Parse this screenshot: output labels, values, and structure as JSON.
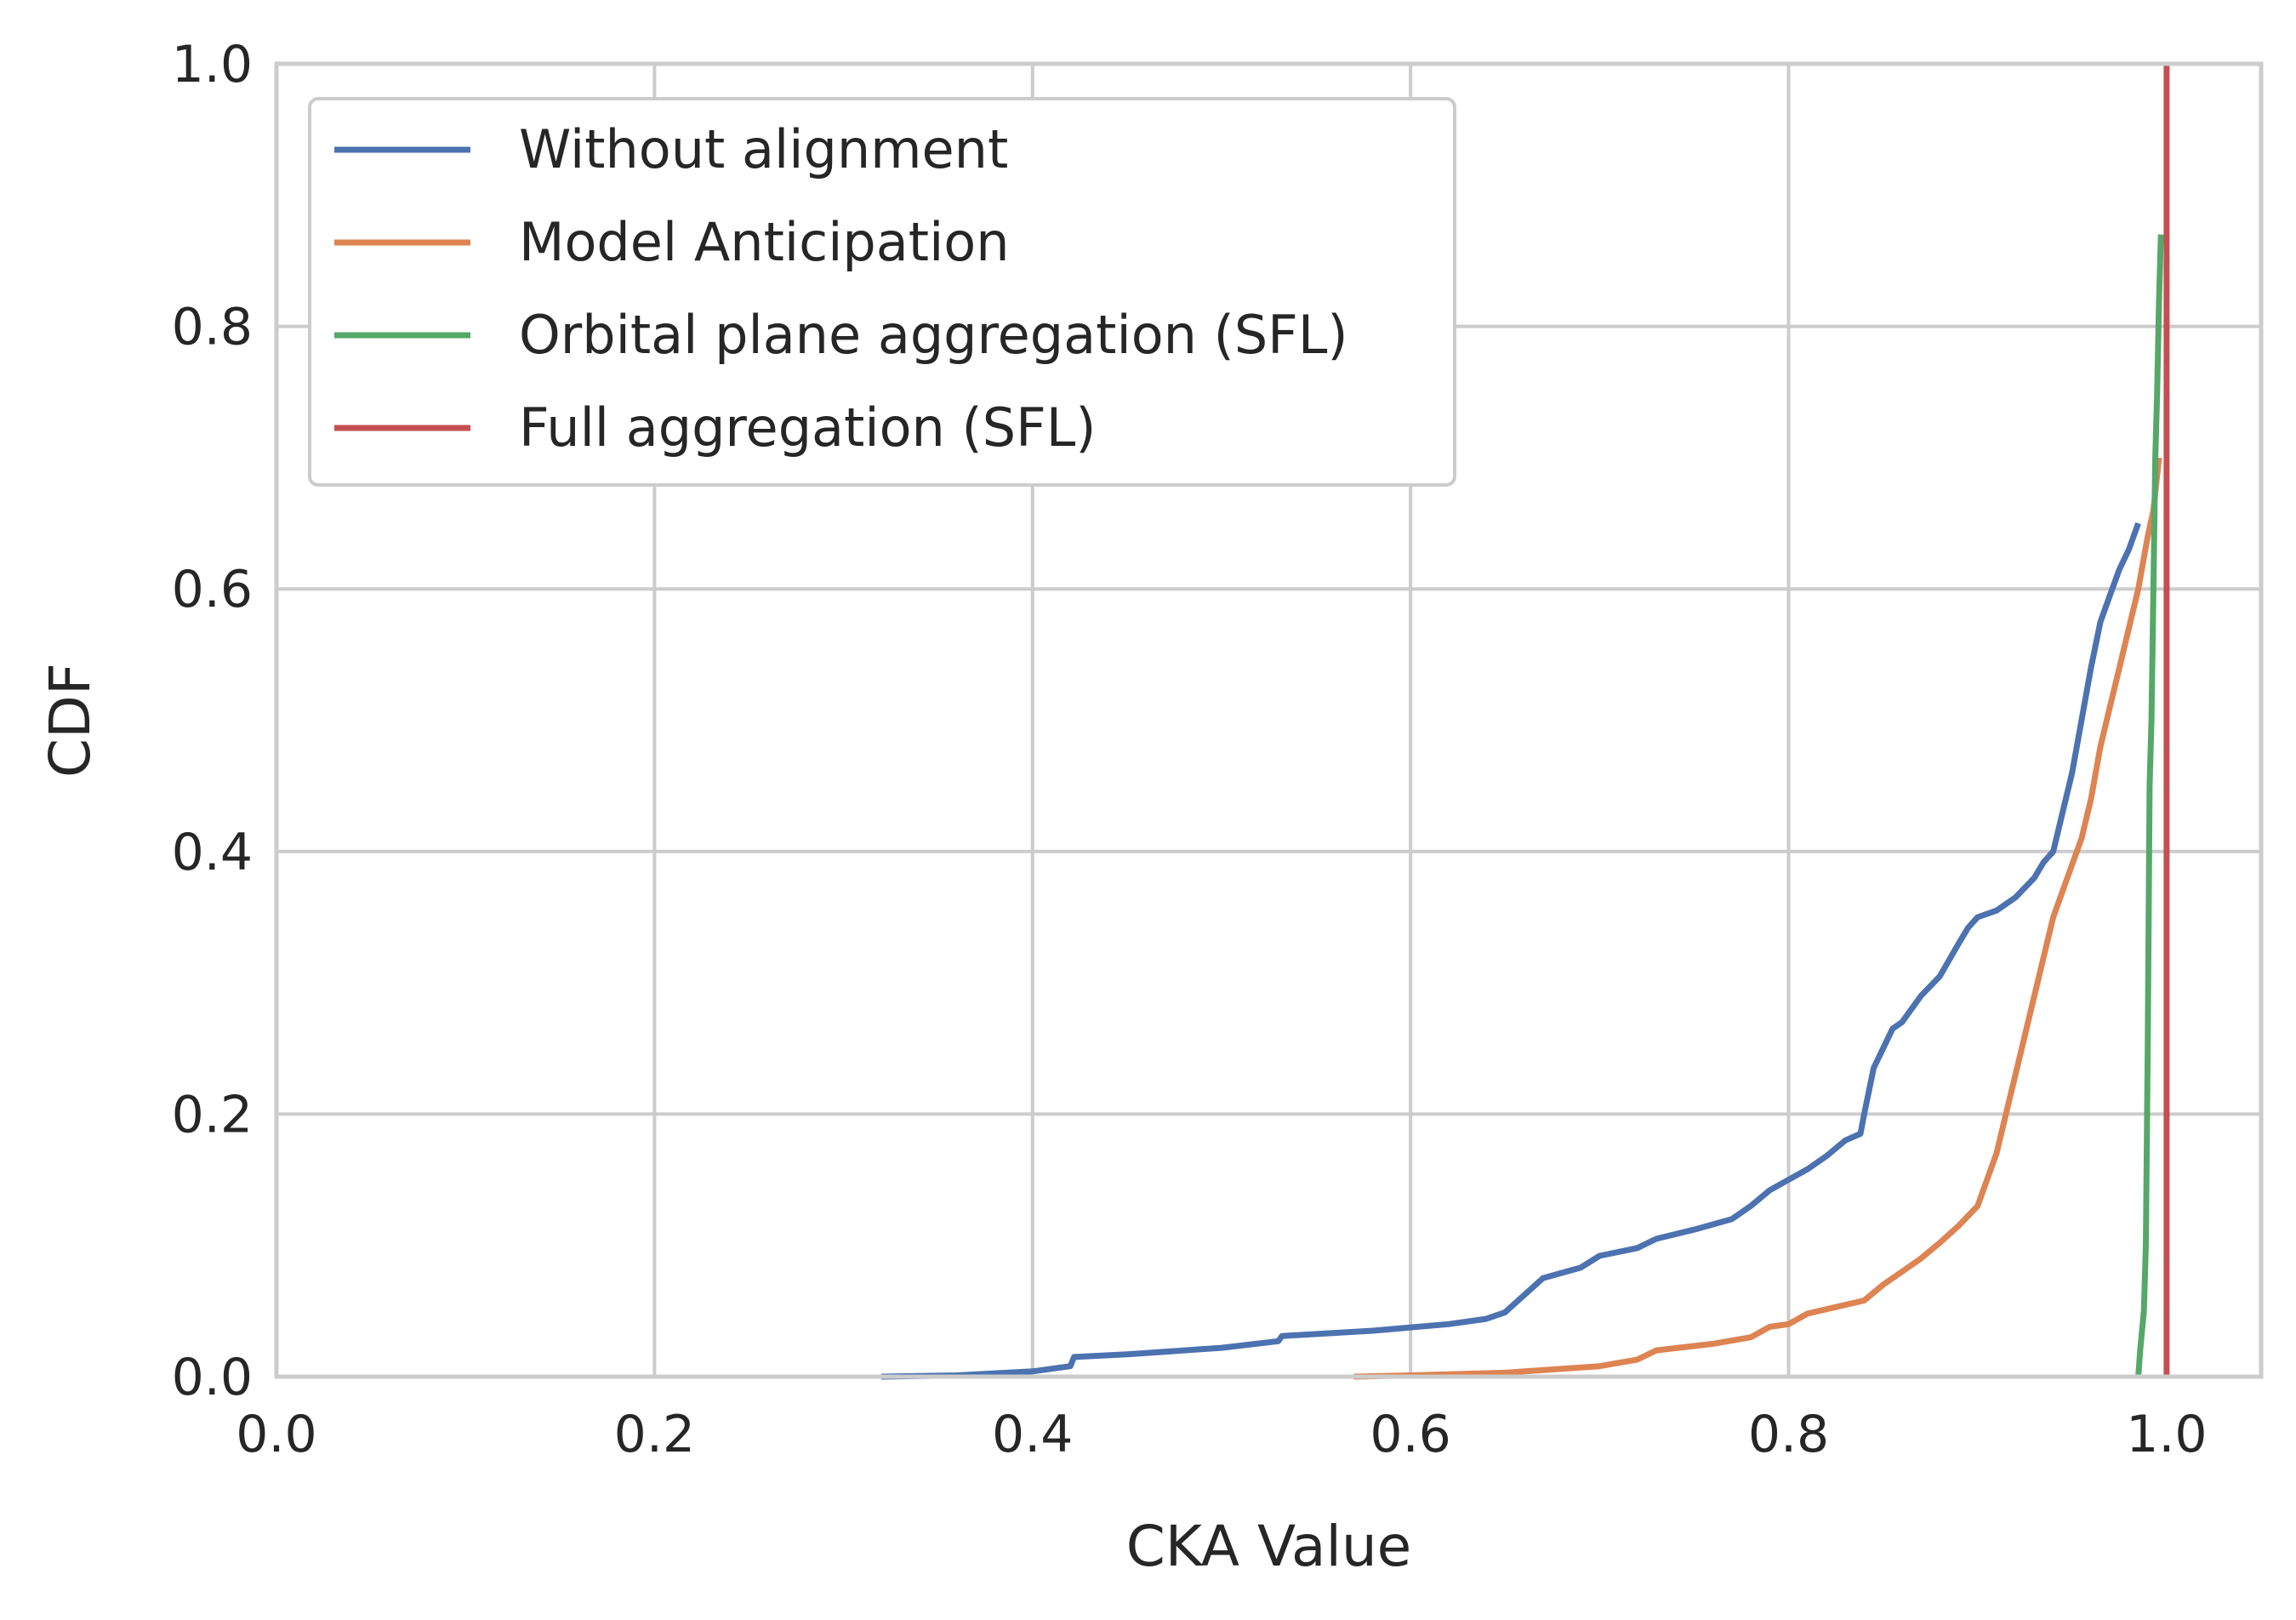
{
  "chart_data": {
    "type": "line",
    "title": "",
    "xlabel": "CKA Value",
    "ylabel": "CDF",
    "xlim": [
      0.0,
      1.05
    ],
    "ylim": [
      0.0,
      1.0
    ],
    "xticks": [
      "0.0",
      "0.2",
      "0.4",
      "0.6",
      "0.8",
      "1.0"
    ],
    "yticks": [
      "0.0",
      "0.2",
      "0.4",
      "0.6",
      "0.8",
      "1.0"
    ],
    "grid": true,
    "legend_position": "top-left",
    "series": [
      {
        "name": "Without alignment",
        "color": "#4c72b0",
        "x": [
          0.32,
          0.36,
          0.4,
          0.42,
          0.422,
          0.45,
          0.5,
          0.53,
          0.532,
          0.58,
          0.62,
          0.64,
          0.65,
          0.66,
          0.67,
          0.69,
          0.7,
          0.72,
          0.73,
          0.75,
          0.77,
          0.78,
          0.79,
          0.8,
          0.81,
          0.82,
          0.83,
          0.838,
          0.84,
          0.845,
          0.85,
          0.855,
          0.86,
          0.87,
          0.88,
          0.89,
          0.895,
          0.9,
          0.91,
          0.92,
          0.93,
          0.935,
          0.94,
          0.945,
          0.95,
          0.955,
          0.96,
          0.965,
          0.97,
          0.975,
          0.98,
          0.985
        ],
        "y": [
          0.0,
          0.001,
          0.004,
          0.008,
          0.015,
          0.017,
          0.022,
          0.027,
          0.031,
          0.035,
          0.04,
          0.044,
          0.049,
          0.062,
          0.075,
          0.083,
          0.092,
          0.098,
          0.105,
          0.112,
          0.12,
          0.13,
          0.142,
          0.15,
          0.158,
          0.168,
          0.18,
          0.185,
          0.2,
          0.235,
          0.25,
          0.265,
          0.27,
          0.29,
          0.305,
          0.33,
          0.342,
          0.35,
          0.355,
          0.365,
          0.38,
          0.392,
          0.4,
          0.43,
          0.46,
          0.5,
          0.54,
          0.575,
          0.595,
          0.615,
          0.63,
          0.65
        ]
      },
      {
        "name": "Model Anticipation",
        "color": "#dd8452",
        "x": [
          0.57,
          0.6,
          0.65,
          0.7,
          0.72,
          0.73,
          0.76,
          0.78,
          0.79,
          0.8,
          0.81,
          0.84,
          0.85,
          0.86,
          0.87,
          0.88,
          0.89,
          0.9,
          0.905,
          0.91,
          0.915,
          0.92,
          0.925,
          0.93,
          0.935,
          0.94,
          0.945,
          0.95,
          0.955,
          0.96,
          0.965,
          0.97,
          0.975,
          0.98,
          0.985,
          0.99,
          0.993,
          0.996
        ],
        "y": [
          0.0,
          0.001,
          0.003,
          0.008,
          0.013,
          0.02,
          0.025,
          0.03,
          0.038,
          0.04,
          0.048,
          0.058,
          0.07,
          0.08,
          0.09,
          0.102,
          0.115,
          0.13,
          0.15,
          0.17,
          0.2,
          0.23,
          0.26,
          0.29,
          0.32,
          0.35,
          0.37,
          0.39,
          0.41,
          0.44,
          0.48,
          0.51,
          0.54,
          0.57,
          0.6,
          0.64,
          0.66,
          0.7
        ]
      },
      {
        "name": "Orbital plane aggregation (SFL)",
        "color": "#55a868",
        "x": [
          0.985,
          0.986,
          0.988,
          0.989,
          0.99,
          0.991,
          0.992,
          0.993,
          0.994,
          0.995,
          0.996,
          0.997
        ],
        "y": [
          0.0,
          0.02,
          0.05,
          0.1,
          0.25,
          0.45,
          0.5,
          0.6,
          0.7,
          0.75,
          0.82,
          0.87
        ]
      },
      {
        "name": "Full aggregation (SFL)",
        "color": "#c44e52",
        "x": [
          1.0,
          1.0
        ],
        "y": [
          0.0,
          1.0
        ]
      }
    ]
  }
}
